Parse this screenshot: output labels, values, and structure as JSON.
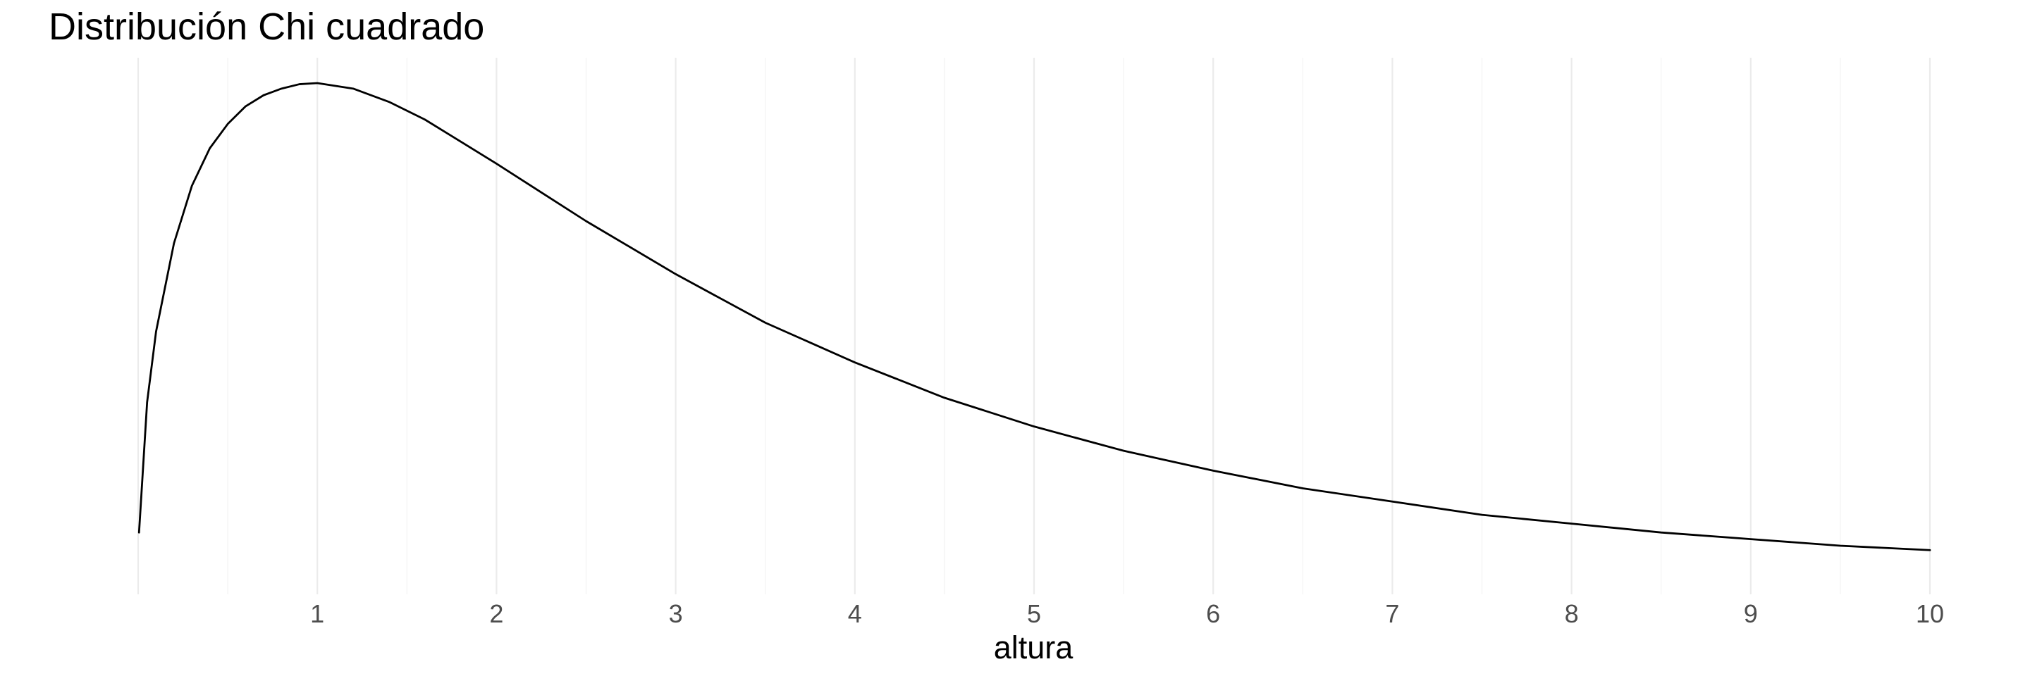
{
  "chart_data": {
    "type": "line",
    "title": "Distribución Chi cuadrado",
    "xlabel": "altura",
    "ylabel": "",
    "xlim": [
      0,
      10
    ],
    "x_ticks": [
      "1",
      "2",
      "3",
      "4",
      "5",
      "6",
      "7",
      "8",
      "9",
      "10"
    ],
    "grid": "vertical",
    "legend": "none",
    "series": [
      {
        "x": [
          0.005,
          0.05,
          0.1,
          0.2,
          0.3,
          0.4,
          0.5,
          0.6,
          0.7,
          0.8,
          0.9,
          1.0,
          1.2,
          1.4,
          1.6,
          1.8,
          2.0,
          2.5,
          3.0,
          3.5,
          4.0,
          4.5,
          5.0,
          5.5,
          6.0,
          6.5,
          7.0,
          7.5,
          8.0,
          8.5,
          9.0,
          9.5,
          10.0
        ],
        "y": [
          0.028,
          0.087,
          0.119,
          0.159,
          0.185,
          0.202,
          0.213,
          0.221,
          0.226,
          0.229,
          0.231,
          0.2315,
          0.229,
          0.223,
          0.215,
          0.205,
          0.195,
          0.169,
          0.145,
          0.123,
          0.105,
          0.089,
          0.076,
          0.065,
          0.056,
          0.048,
          0.042,
          0.036,
          0.032,
          0.028,
          0.025,
          0.022,
          0.02
        ]
      }
    ],
    "colors": {
      "line": "#000000",
      "grid": "#ebebeb",
      "tick_text": "#4d4d4d"
    }
  }
}
